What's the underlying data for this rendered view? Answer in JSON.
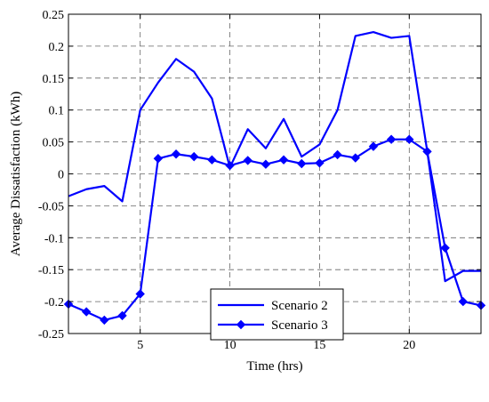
{
  "chart_data": {
    "type": "line",
    "title": "",
    "xlabel": "Time (hrs)",
    "ylabel": "Average Dissatisfaction (kWh)",
    "xlim": [
      1,
      24
    ],
    "ylim": [
      -0.25,
      0.25
    ],
    "xticks": [
      5,
      10,
      15,
      20
    ],
    "xtick_labels": [
      "5",
      "10",
      "15",
      "20"
    ],
    "yticks": [
      0.25,
      0.2,
      0.15,
      0.1,
      0.05,
      0,
      -0.05,
      -0.1,
      -0.15,
      -0.2,
      -0.25
    ],
    "ytick_labels": [
      "0.25",
      "0.2",
      "0.15",
      "0.1",
      "0.05",
      "0",
      "-0.05",
      "-0.1",
      "-0.15",
      "-0.2",
      "-0.25"
    ],
    "grid": true,
    "legend_position": "bottom-center",
    "x": [
      1,
      2,
      3,
      4,
      5,
      6,
      7,
      8,
      9,
      10,
      11,
      12,
      13,
      14,
      15,
      16,
      17,
      18,
      19,
      20,
      21,
      22,
      23,
      24
    ],
    "series": [
      {
        "name": "Scenario 2",
        "color": "#0000ff",
        "marker": "none",
        "values": [
          -0.035,
          -0.024,
          -0.019,
          -0.043,
          0.1,
          0.143,
          0.18,
          0.16,
          0.118,
          0.01,
          0.07,
          0.04,
          0.086,
          0.027,
          0.046,
          0.1,
          0.216,
          0.222,
          0.213,
          0.216,
          0.036,
          -0.168,
          -0.152,
          -0.152
        ]
      },
      {
        "name": "Scenario 3",
        "color": "#0000ff",
        "marker": "diamond",
        "values": [
          -0.204,
          -0.216,
          -0.229,
          -0.222,
          -0.188,
          0.024,
          0.031,
          0.027,
          0.022,
          0.013,
          0.021,
          0.015,
          0.022,
          0.016,
          0.017,
          0.03,
          0.025,
          0.043,
          0.054,
          0.054,
          0.035,
          -0.116,
          -0.2,
          -0.206
        ]
      }
    ]
  }
}
